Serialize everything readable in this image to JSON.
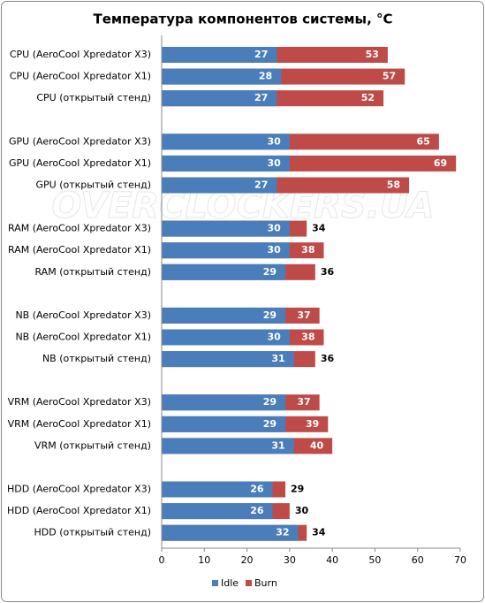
{
  "chart_data": {
    "type": "bar",
    "orientation": "horizontal",
    "overlap": true,
    "title": "Температура компонентов системы, °C",
    "watermark": "OVERCLOCKERS.UA",
    "categories": [
      "CPU (AeroCool Xpredator X3)",
      "CPU (AeroCool Xpredator X1)",
      "CPU (открытый стенд)",
      "GPU (AeroCool Xpredator X3)",
      "GPU (AeroCool Xpredator X1)",
      "GPU (открытый стенд)",
      "RAM (AeroCool Xpredator X3)",
      "RAM (AeroCool Xpredator X1)",
      "RAM (открытый стенд)",
      "NB (AeroCool Xpredator X3)",
      "NB (AeroCool Xpredator X1)",
      "NB (открытый стенд)",
      "VRM (AeroCool Xpredator X3)",
      "VRM (AeroCool Xpredator X1)",
      "VRM (открытый стенд)",
      "HDD (AeroCool Xpredator X3)",
      "HDD (AeroCool Xpredator X1)",
      "HDD (открытый стенд)"
    ],
    "series": [
      {
        "name": "Idle",
        "color": "#4a7ebb",
        "values": [
          27,
          28,
          27,
          30,
          30,
          27,
          30,
          30,
          29,
          29,
          30,
          31,
          29,
          29,
          31,
          26,
          26,
          32
        ]
      },
      {
        "name": "Burn",
        "color": "#be4b48",
        "values": [
          53,
          57,
          52,
          65,
          69,
          58,
          34,
          38,
          36,
          37,
          38,
          36,
          37,
          39,
          40,
          29,
          30,
          34
        ]
      }
    ],
    "xlim": [
      0,
      70
    ],
    "xticks": [
      0,
      10,
      20,
      30,
      40,
      50,
      60,
      70
    ],
    "legend": "bottom",
    "grid": false
  }
}
